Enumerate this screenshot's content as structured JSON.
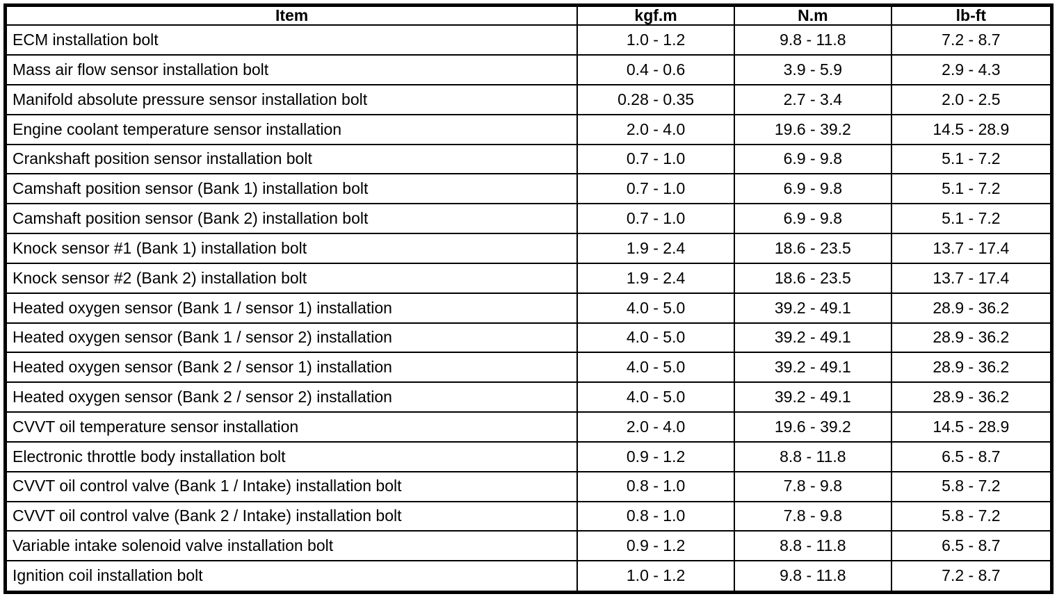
{
  "table": {
    "columns": [
      "Item",
      "kgf.m",
      "N.m",
      "lb-ft"
    ],
    "rows": [
      [
        "ECM installation bolt",
        "1.0 - 1.2",
        "9.8 - 11.8",
        "7.2 - 8.7"
      ],
      [
        "Mass air flow sensor installation bolt",
        "0.4 - 0.6",
        "3.9 - 5.9",
        "2.9 - 4.3"
      ],
      [
        "Manifold absolute pressure sensor installation bolt",
        "0.28 - 0.35",
        "2.7 - 3.4",
        "2.0 - 2.5"
      ],
      [
        "Engine coolant temperature sensor installation",
        "2.0 - 4.0",
        "19.6 - 39.2",
        "14.5 - 28.9"
      ],
      [
        "Crankshaft position sensor installation bolt",
        "0.7 - 1.0",
        "6.9 - 9.8",
        "5.1 - 7.2"
      ],
      [
        "Camshaft position sensor (Bank 1) installation bolt",
        "0.7 - 1.0",
        "6.9 - 9.8",
        "5.1 - 7.2"
      ],
      [
        "Camshaft position sensor (Bank 2) installation bolt",
        "0.7 - 1.0",
        "6.9 - 9.8",
        "5.1 - 7.2"
      ],
      [
        "Knock sensor #1 (Bank 1) installation bolt",
        "1.9 - 2.4",
        "18.6 - 23.5",
        "13.7 - 17.4"
      ],
      [
        "Knock sensor #2 (Bank 2) installation bolt",
        "1.9 - 2.4",
        "18.6 - 23.5",
        "13.7 - 17.4"
      ],
      [
        "Heated oxygen sensor (Bank 1 / sensor 1) installation",
        "4.0 - 5.0",
        "39.2 - 49.1",
        "28.9 - 36.2"
      ],
      [
        "Heated oxygen sensor (Bank 1 / sensor 2) installation",
        "4.0 - 5.0",
        "39.2 - 49.1",
        "28.9 - 36.2"
      ],
      [
        "Heated oxygen sensor (Bank 2 / sensor 1) installation",
        "4.0 - 5.0",
        "39.2 - 49.1",
        "28.9 - 36.2"
      ],
      [
        "Heated oxygen sensor (Bank 2 / sensor 2) installation",
        "4.0 - 5.0",
        "39.2 - 49.1",
        "28.9 - 36.2"
      ],
      [
        "CVVT oil temperature sensor installation",
        "2.0 - 4.0",
        "19.6 - 39.2",
        "14.5 - 28.9"
      ],
      [
        "Electronic throttle body installation bolt",
        "0.9 - 1.2",
        "8.8 - 11.8",
        "6.5 - 8.7"
      ],
      [
        "CVVT oil control valve (Bank 1 / Intake) installation bolt",
        "0.8 - 1.0",
        "7.8 - 9.8",
        "5.8 - 7.2"
      ],
      [
        "CVVT oil control valve (Bank 2 / Intake) installation bolt",
        "0.8 - 1.0",
        "7.8 - 9.8",
        "5.8 - 7.2"
      ],
      [
        "Variable intake solenoid valve installation bolt",
        "0.9 - 1.2",
        "8.8 - 11.8",
        "6.5 - 8.7"
      ],
      [
        "Ignition coil installation bolt",
        "1.0 - 1.2",
        "9.8 - 11.8",
        "7.2 - 8.7"
      ]
    ],
    "colors": {
      "border": "#000000",
      "background": "#ffffff",
      "text": "#000000"
    }
  }
}
